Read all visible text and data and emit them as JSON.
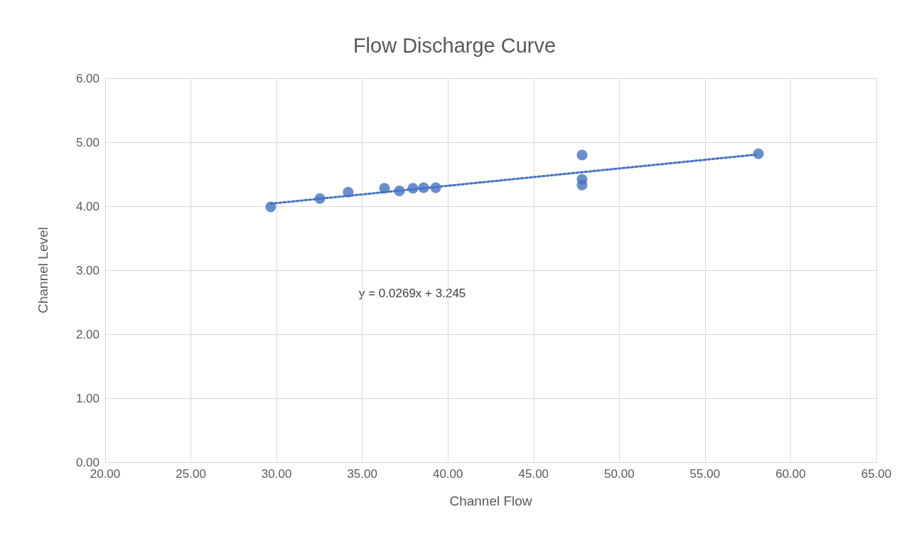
{
  "chart_data": {
    "type": "scatter",
    "title": "Flow Discharge Curve",
    "xlabel": "Channel Flow",
    "ylabel": "Channel Level",
    "x": [
      29.66,
      32.53,
      34.18,
      36.3,
      37.17,
      37.96,
      38.58,
      39.29,
      47.83,
      47.83,
      47.83,
      58.12
    ],
    "series": [
      {
        "color": "#4472c4",
        "values": [
          3.99,
          4.12,
          4.22,
          4.28,
          4.24,
          4.28,
          4.29,
          4.29,
          4.8,
          4.42,
          4.33,
          4.82
        ]
      },
      {
        "type": "line",
        "color": "#4472c4",
        "line_style": "dotted",
        "marker": "none",
        "x": [
          29.66,
          58.12
        ],
        "values": [
          4.04,
          4.81
        ]
      }
    ],
    "annotations": [
      "y = 0.0269x + 3.245"
    ],
    "xlim": [
      20,
      65
    ],
    "ylim": [
      0,
      6
    ],
    "xticks": [
      {
        "value": 20,
        "label": "20.00"
      },
      {
        "value": 25,
        "label": "25.00"
      },
      {
        "value": 30,
        "label": "30.00"
      },
      {
        "value": 35,
        "label": "35.00"
      },
      {
        "value": 40,
        "label": "40.00"
      },
      {
        "value": 45,
        "label": "45.00"
      },
      {
        "value": 50,
        "label": "50.00"
      },
      {
        "value": 55,
        "label": "55.00"
      },
      {
        "value": 60,
        "label": "60.00"
      },
      {
        "value": 65,
        "label": "65.00"
      }
    ],
    "yticks": [
      {
        "value": 0,
        "label": "0.00"
      },
      {
        "value": 1,
        "label": "1.00"
      },
      {
        "value": 2,
        "label": "2.00"
      },
      {
        "value": 3,
        "label": "3.00"
      },
      {
        "value": 4,
        "label": "4.00"
      },
      {
        "value": 5,
        "label": "5.00"
      },
      {
        "value": 6,
        "label": "6.00"
      }
    ],
    "grid": true,
    "marker": "circle"
  }
}
